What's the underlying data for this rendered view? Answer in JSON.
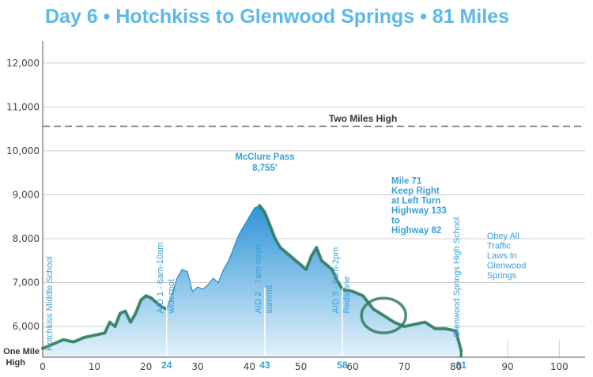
{
  "colors": {
    "title": "#5bb8e8",
    "fill_top": "#2f94d6",
    "fill_bottom": "#e2f2fb",
    "trace": "#2f7d5c",
    "grid": "#cccccc",
    "annotation": "#3a9fd8"
  },
  "chart_data": {
    "type": "area",
    "title": "Day 6 • Hotchkiss to Glenwood Springs • 81 Miles",
    "xlabel": "",
    "ylabel": "",
    "xlim": [
      0,
      105
    ],
    "ylim": [
      5300,
      12500
    ],
    "x_ticks": [
      0,
      10,
      20,
      30,
      40,
      50,
      60,
      70,
      80,
      90,
      100
    ],
    "y_ticks": [
      6000,
      7000,
      8000,
      9000,
      10000,
      11000,
      12000
    ],
    "y_tick_labels": [
      "6,000",
      "7,000",
      "8,000",
      "9,000",
      "10,000",
      "11,000",
      "12,000"
    ],
    "y_baseline_label": [
      "One Mile",
      "High"
    ],
    "grid": true,
    "reference_line": {
      "y": 10560,
      "label": "Two Miles High"
    },
    "series": [
      {
        "x": [
          0,
          2,
          4,
          6,
          8,
          10,
          12,
          13,
          14,
          15,
          16,
          17,
          18,
          19,
          20,
          21,
          22,
          23,
          24,
          25,
          26,
          27,
          28,
          29,
          30,
          31,
          32,
          33,
          34,
          35,
          36,
          37,
          38,
          39,
          40,
          41,
          42,
          43,
          44,
          45,
          46,
          47,
          48,
          49,
          50,
          51,
          52,
          53,
          54,
          55,
          56,
          57,
          58,
          60,
          62,
          64,
          66,
          68,
          70,
          72,
          74,
          76,
          78,
          80,
          81
        ],
        "y": [
          5500,
          5600,
          5700,
          5650,
          5750,
          5800,
          5850,
          6100,
          6000,
          6300,
          6350,
          6100,
          6300,
          6600,
          6700,
          6650,
          6550,
          6450,
          6400,
          6700,
          7100,
          7300,
          7250,
          6800,
          6900,
          6850,
          6950,
          7100,
          7000,
          7300,
          7500,
          7800,
          8100,
          8300,
          8500,
          8700,
          8755,
          8600,
          8300,
          8000,
          7800,
          7700,
          7600,
          7500,
          7400,
          7300,
          7600,
          7800,
          7500,
          7400,
          7300,
          7050,
          6850,
          6800,
          6700,
          6400,
          6250,
          6100,
          6000,
          6050,
          6100,
          5950,
          5950,
          5900,
          5450
        ]
      }
    ],
    "aid_stations": [
      {
        "x": 24,
        "label": "AID 1 - 6am-10am",
        "sub": "widespot"
      },
      {
        "x": 43,
        "label": "AID 2 - 7am-noon",
        "sub": "summit"
      },
      {
        "x": 58,
        "label": "AID 3 - 9am-2pm",
        "sub": "Redstone"
      }
    ],
    "aid_x_labels": [
      "24",
      "43",
      "58",
      "81"
    ],
    "annotations": {
      "start": "Hotchkiss Middle School",
      "end": "Glenwood Springs High School",
      "pass": [
        "McClure Pass",
        "8,755'"
      ],
      "mile71": [
        "Mile 71",
        "Keep Right",
        "at Left Turn",
        "Highway 133",
        "to",
        "Highway 82"
      ],
      "obey": [
        "Obey All",
        "Traffic",
        "Laws In",
        "Glenwood",
        "Springs"
      ]
    }
  }
}
